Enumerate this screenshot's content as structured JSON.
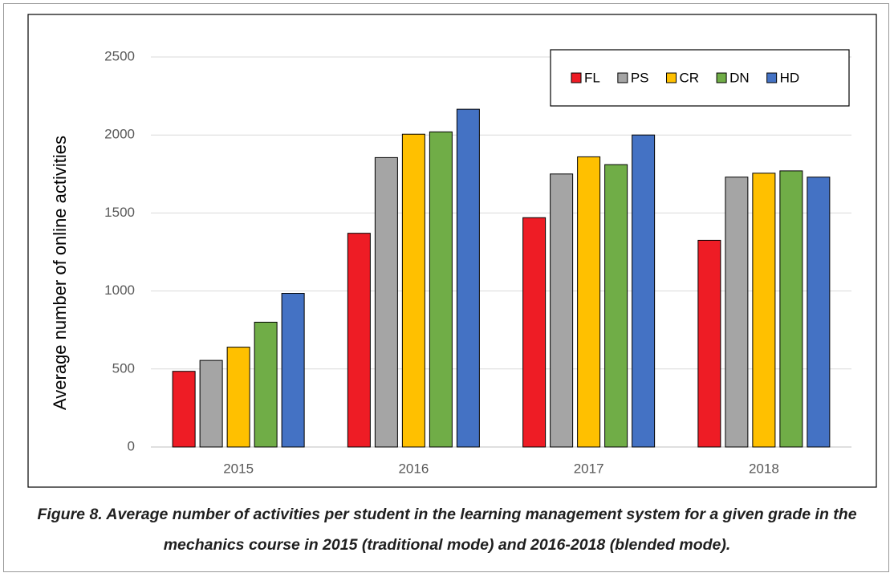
{
  "chart_data": {
    "type": "bar",
    "y_label": "Average number of online activities",
    "categories": [
      "2015",
      "2016",
      "2017",
      "2018"
    ],
    "series": [
      {
        "name": "FL",
        "color": "#ee1c25",
        "values": [
          485,
          1370,
          1470,
          1325
        ]
      },
      {
        "name": "PS",
        "color": "#a5a5a5",
        "values": [
          555,
          1855,
          1750,
          1730
        ]
      },
      {
        "name": "CR",
        "color": "#ffc000",
        "values": [
          640,
          2005,
          1860,
          1755
        ]
      },
      {
        "name": "DN",
        "color": "#70ad47",
        "values": [
          800,
          2020,
          1810,
          1770
        ]
      },
      {
        "name": "HD",
        "color": "#4472c4",
        "values": [
          985,
          2165,
          2000,
          1730
        ]
      }
    ],
    "ylim": [
      0,
      2500
    ],
    "yticks": [
      0,
      500,
      1000,
      1500,
      2000,
      2500
    ],
    "grid": true,
    "legend": "top-right"
  },
  "caption": "Figure 8. Average number of activities per student in the learning management system for a given grade in the mechanics course in 2015 (traditional mode) and 2016-2018 (blended mode)."
}
